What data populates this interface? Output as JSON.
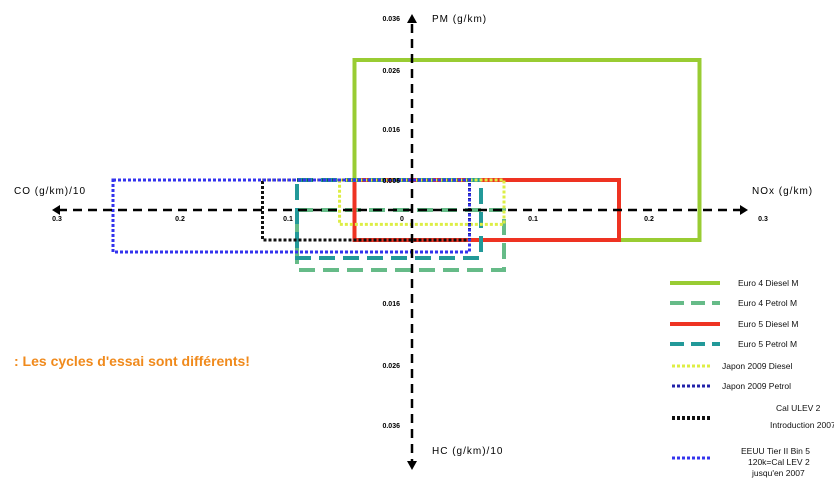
{
  "chart_data": {
    "type": "quadrant",
    "axes": {
      "pm": "PM (g/km)",
      "hc": "HC (g/km)/10",
      "co": "CO (g/km)/10",
      "nox": "NOx (g/km)"
    },
    "x_ticks": {
      "left": [
        "0.3",
        "0.2",
        "0.1",
        "0"
      ],
      "right": [
        "0.1",
        "0.2",
        "0.3"
      ]
    },
    "y_ticks": {
      "up": [
        "0.036",
        "0.026",
        "0.016",
        "0.006"
      ],
      "down": [
        "0.016",
        "0.026",
        "0.036"
      ]
    },
    "note": ": Les cycles d'essai sont différents!",
    "series": [
      {
        "name": "Euro 4 Diesel M",
        "color": "#99cc33",
        "style": "solid",
        "CO": 0.05,
        "NOx": 0.25,
        "PM": 0.025,
        "HC": 0.005
      },
      {
        "name": "Euro 4 Petrol M",
        "color": "#66bb88",
        "style": "dash",
        "CO": 0.1,
        "NOx": 0.08,
        "PM": 0.0,
        "HC": 0.01
      },
      {
        "name": "Euro 5 Diesel M",
        "color": "#ee3322",
        "style": "solid",
        "CO": 0.05,
        "NOx": 0.18,
        "PM": 0.005,
        "HC": 0.005
      },
      {
        "name": "Euro 5 Petrol M",
        "color": "#229999",
        "style": "dash",
        "CO": 0.1,
        "NOx": 0.06,
        "PM": 0.005,
        "HC": 0.008
      },
      {
        "name": "Japon 2009 Diesel",
        "color": "#ddee44",
        "style": "dots",
        "CO": 0.063,
        "NOx": 0.08,
        "PM": 0.005,
        "HC": 0.0024
      },
      {
        "name": "Japon 2009 Petrol",
        "color": "#2222aa",
        "style": "dots",
        "CO": 0.13,
        "NOx": 0.05,
        "PM": 0.005,
        "HC": 0.005
      },
      {
        "name": "Cal ULEV",
        "color": "#111111",
        "style": "dots",
        "CO": 0.13,
        "NOx": 0.05,
        "PM": 0.005,
        "HC": 0.005
      },
      {
        "name": "EEUU Tier II Bin",
        "color": "#3333ee",
        "style": "dots",
        "CO": 0.26,
        "NOx": 0.05,
        "PM": 0.005,
        "HC": 0.007
      }
    ],
    "legend": [
      {
        "label": "Euro 4 Diesel M"
      },
      {
        "label": "Euro 4 Petrol M"
      },
      {
        "label": "Euro 5 Diesel M"
      },
      {
        "label": "Euro 5 Petrol M"
      },
      {
        "label": "Japon 2009 Diesel"
      },
      {
        "label": "Japon 2009 Petrol"
      },
      {
        "label": "Cal ULEV 2",
        "label2": "Introduction 2007"
      },
      {
        "label": "EEUU Tier II Bin 5",
        "label2": "120k=Cal LEV 2",
        "label3": "jusqu'en 2007"
      }
    ]
  }
}
